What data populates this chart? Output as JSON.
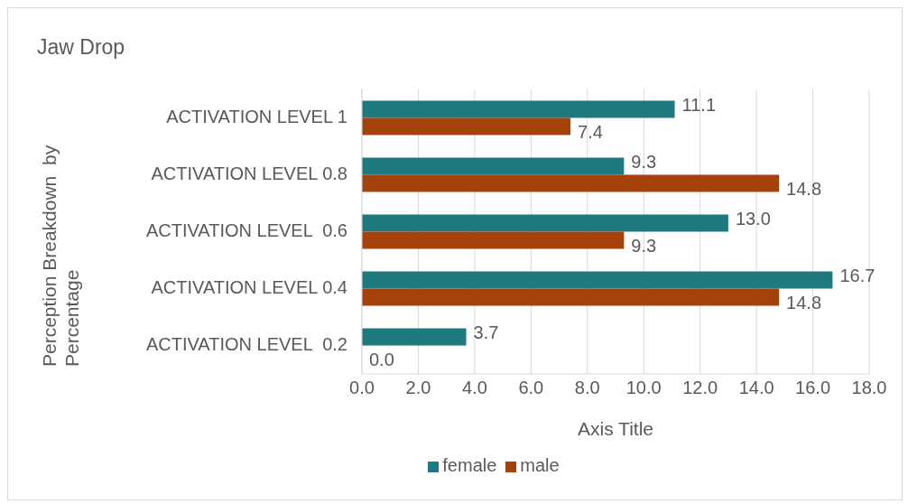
{
  "chart_data": {
    "type": "bar",
    "orientation": "horizontal",
    "title": "Jaw Drop",
    "xlabel": "Axis Title",
    "ylabel": "Perception Breakdown  by Percentage",
    "categories": [
      "ACTIVATION LEVEL 1",
      "ACTIVATION LEVEL 0.8",
      "ACTIVATION LEVEL  0.6",
      "ACTIVATION LEVEL 0.4",
      "ACTIVATION LEVEL  0.2"
    ],
    "series": [
      {
        "name": "female",
        "color": "#1f7a80",
        "values": [
          11.1,
          9.3,
          13.0,
          16.7,
          3.7
        ],
        "value_labels": [
          "11.1",
          "9.3",
          "13.0",
          "16.7",
          "3.7"
        ]
      },
      {
        "name": "male",
        "color": "#a5410a",
        "values": [
          7.4,
          14.8,
          9.3,
          14.8,
          0.0
        ],
        "value_labels": [
          "7.4",
          "14.8",
          "9.3",
          "14.8",
          "0.0"
        ]
      }
    ],
    "xlim": [
      0,
      18
    ],
    "xticks": [
      {
        "value": 0,
        "label": "0.0"
      },
      {
        "value": 2,
        "label": "2.0"
      },
      {
        "value": 4,
        "label": "4.0"
      },
      {
        "value": 6,
        "label": "6.0"
      },
      {
        "value": 8,
        "label": "8.0"
      },
      {
        "value": 10,
        "label": "10.0"
      },
      {
        "value": 12,
        "label": "12.0"
      },
      {
        "value": 14,
        "label": "14.0"
      },
      {
        "value": 16,
        "label": "16.0"
      },
      {
        "value": 18,
        "label": "18.0"
      }
    ],
    "grid": "x",
    "legend": "bottom"
  }
}
